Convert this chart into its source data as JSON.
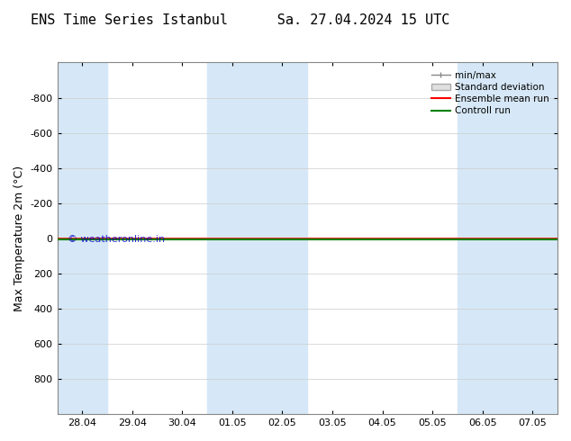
{
  "title": "ENS Time Series Istanbul      Sa. 27.04.2024 15 UTC",
  "ylabel": "Max Temperature 2m (°C)",
  "ylim": [
    1000,
    -1000
  ],
  "yticks": [
    -800,
    -600,
    -400,
    -200,
    0,
    200,
    400,
    600,
    800
  ],
  "xtick_labels": [
    "28.04",
    "29.04",
    "30.04",
    "01.05",
    "02.05",
    "03.05",
    "04.05",
    "05.05",
    "06.05",
    "07.05"
  ],
  "xtick_positions": [
    0,
    1,
    2,
    3,
    4,
    5,
    6,
    7,
    8,
    9
  ],
  "shaded_columns": [
    0,
    3,
    4,
    8,
    9
  ],
  "shaded_color": "#d6e8f7",
  "line_y": 0,
  "ensemble_color": "#ff0000",
  "control_color": "#008000",
  "background_color": "#ffffff",
  "watermark": "© weatheronline.in",
  "watermark_color": "#0000cc",
  "legend_items": [
    "min/max",
    "Standard deviation",
    "Ensemble mean run",
    "Controll run"
  ],
  "legend_colors": [
    "#808080",
    "#c0c0c0",
    "#ff0000",
    "#008000"
  ],
  "title_fontsize": 11,
  "axis_fontsize": 9,
  "tick_fontsize": 8
}
